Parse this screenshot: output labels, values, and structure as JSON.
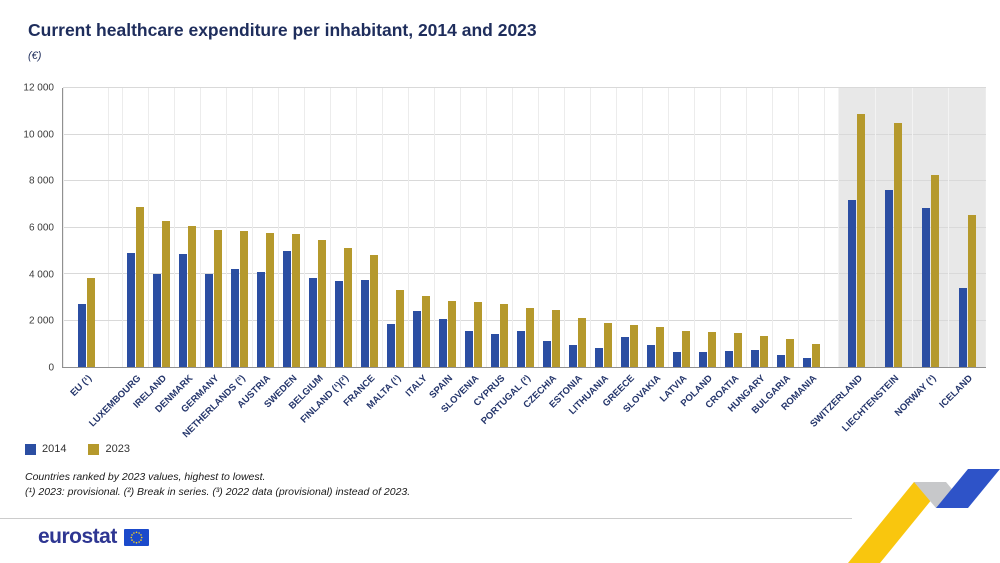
{
  "title": "Current healthcare expenditure per inhabitant, 2014 and 2023",
  "subtitle": "(€)",
  "legend": {
    "items": [
      {
        "label": "2014",
        "color": "#2b4ea2"
      },
      {
        "label": "2023",
        "color": "#b5992c"
      }
    ]
  },
  "footnotes": {
    "line1": "Countries ranked by 2023 values, highest to lowest.",
    "line2": "(¹) 2023: provisional. (²) Break in series. (³) 2022 data (provisional) instead of 2023."
  },
  "footer": {
    "brand": "eurostat"
  },
  "chart_data": {
    "type": "bar",
    "title": "Current healthcare expenditure per inhabitant, 2014 and 2023",
    "ylabel": "(€)",
    "ylim": [
      0,
      12000
    ],
    "ytick_step": 2000,
    "ytick_labels": [
      "0",
      "2 000",
      "4 000",
      "6 000",
      "8 000",
      "10 000",
      "12 000"
    ],
    "grid": true,
    "legend_position": "bottom-left",
    "series_names": [
      "2014",
      "2023"
    ],
    "series_colors": {
      "2014": "#2b4ea2",
      "2023": "#b5992c"
    },
    "sections": [
      {
        "id": "eu",
        "shaded": false,
        "categories": [
          "EU (¹)"
        ],
        "series": [
          {
            "name": "2014",
            "values": [
              2700
            ]
          },
          {
            "name": "2023",
            "values": [
              3850
            ]
          }
        ]
      },
      {
        "id": "eu-members",
        "shaded": false,
        "categories": [
          "LUXEMBOURG",
          "IRELAND",
          "DENMARK",
          "GERMANY",
          "NETHERLANDS (²)",
          "AUSTRIA",
          "SWEDEN",
          "BELGIUM",
          "FINLAND (¹)(²)",
          "FRANCE",
          "MALTA (¹)",
          "ITALY",
          "SPAIN",
          "SLOVENIA",
          "CYPRUS",
          "PORTUGAL (²)",
          "CZECHIA",
          "ESTONIA",
          "LITHUANIA",
          "GREECE",
          "SLOVAKIA",
          "LATVIA",
          "POLAND",
          "CROATIA",
          "HUNGARY",
          "BULGARIA",
          "ROMANIA"
        ],
        "series": [
          {
            "name": "2014",
            "values": [
              4900,
              4000,
              4850,
              4000,
              4200,
              4100,
              5000,
              3850,
              3700,
              3750,
              1850,
              2400,
              2050,
              1550,
              1400,
              1550,
              1100,
              950,
              800,
              1300,
              950,
              650,
              650,
              700,
              750,
              500,
              400
            ]
          },
          {
            "name": "2023",
            "values": [
              6900,
              6300,
              6050,
              5900,
              5850,
              5750,
              5700,
              5450,
              5100,
              4800,
              3300,
              3050,
              2850,
              2800,
              2700,
              2550,
              2450,
              2100,
              1900,
              1800,
              1700,
              1550,
              1500,
              1450,
              1350,
              1200,
              1000
            ]
          }
        ]
      },
      {
        "id": "efta",
        "shaded": true,
        "categories": [
          "SWITZERLAND",
          "LIECHTENSTEIN",
          "NORWAY (³)",
          "ICELAND"
        ],
        "series": [
          {
            "name": "2014",
            "values": [
              7200,
              7600,
              6850,
              3400
            ]
          },
          {
            "name": "2023",
            "values": [
              10900,
              10500,
              8250,
              6550
            ]
          }
        ]
      }
    ]
  }
}
